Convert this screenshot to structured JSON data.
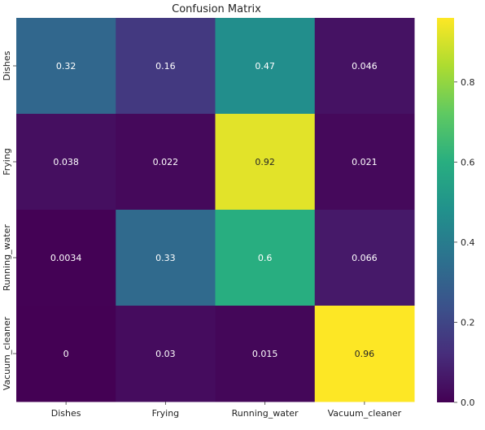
{
  "chart_data": {
    "type": "heatmap",
    "title": "Confusion Matrix",
    "xlabel": "",
    "ylabel": "",
    "x_categories": [
      "Dishes",
      "Frying",
      "Running_water",
      "Vacuum_cleaner"
    ],
    "y_categories": [
      "Dishes",
      "Frying",
      "Running_water",
      "Vacuum_cleaner"
    ],
    "cells": [
      [
        {
          "value": 0.32,
          "label": "0.32"
        },
        {
          "value": 0.16,
          "label": "0.16"
        },
        {
          "value": 0.47,
          "label": "0.47"
        },
        {
          "value": 0.046,
          "label": "0.046"
        }
      ],
      [
        {
          "value": 0.038,
          "label": "0.038"
        },
        {
          "value": 0.022,
          "label": "0.022"
        },
        {
          "value": 0.92,
          "label": "0.92"
        },
        {
          "value": 0.021,
          "label": "0.021"
        }
      ],
      [
        {
          "value": 0.0034,
          "label": "0.0034"
        },
        {
          "value": 0.33,
          "label": "0.33"
        },
        {
          "value": 0.6,
          "label": "0.6"
        },
        {
          "value": 0.066,
          "label": "0.066"
        }
      ],
      [
        {
          "value": 0,
          "label": "0"
        },
        {
          "value": 0.03,
          "label": "0.03"
        },
        {
          "value": 0.015,
          "label": "0.015"
        },
        {
          "value": 0.96,
          "label": "0.96"
        }
      ]
    ],
    "colormap": "viridis",
    "colorbar": {
      "range": [
        0,
        0.96
      ],
      "ticks": [
        {
          "value": 0.0,
          "label": "0.0"
        },
        {
          "value": 0.2,
          "label": "0.2"
        },
        {
          "value": 0.4,
          "label": "0.4"
        },
        {
          "value": 0.6,
          "label": "0.6"
        },
        {
          "value": 0.8,
          "label": "0.8"
        }
      ]
    },
    "grid": false,
    "legend": "colorbar-right"
  }
}
